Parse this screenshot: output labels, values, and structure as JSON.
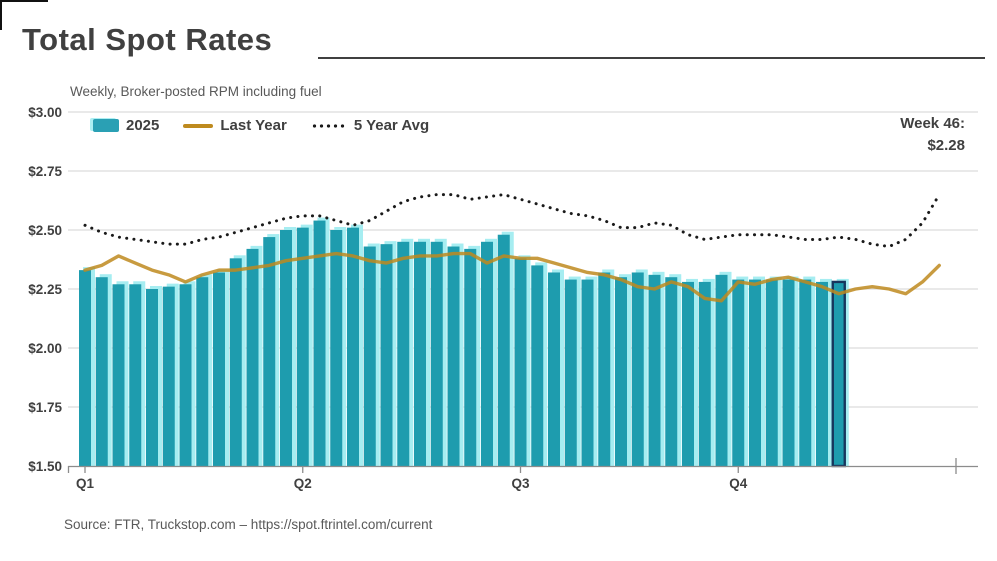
{
  "title": "Total Spot Rates",
  "subtitle": "Weekly, Broker-posted RPM including fuel",
  "annotation": {
    "line1": "Week 46:",
    "line2": "$2.28"
  },
  "legend": {
    "items": [
      {
        "label": "2025",
        "marker": "bar-swatch"
      },
      {
        "label": "Last Year",
        "marker": "line-swatch"
      },
      {
        "label": "5 Year Avg",
        "marker": "dotted-swatch"
      }
    ]
  },
  "source": "Source: FTR, Truckstop.com – https://spot.ftrintel.com/current",
  "colors": {
    "bar": "#1E9CAE",
    "bar_echo": "#A6EDF1",
    "highlight_border": "#17365D",
    "last_year": "#BE8A1E",
    "five_year_avg": "#1A1A1A",
    "grid": "#DCDCDC",
    "axis": "#8C8C8C",
    "text": "#404040",
    "subtext": "#595959"
  },
  "chart_data": {
    "type": "bar",
    "title": "Total Spot Rates",
    "subtitle": "Weekly, Broker-posted RPM including fuel",
    "x_unit": "week",
    "weeks_total": 52,
    "bar_weeks": 46,
    "ylim": [
      1.5,
      3.0
    ],
    "grid": true,
    "legend_position": "top-left",
    "yticks": [
      {
        "label": "$3.00",
        "value": 3.0
      },
      {
        "label": "$2.75",
        "value": 2.75
      },
      {
        "label": "$2.50",
        "value": 2.5
      },
      {
        "label": "$2.25",
        "value": 2.25
      },
      {
        "label": "$2.00",
        "value": 2.0
      },
      {
        "label": "$1.75",
        "value": 1.75
      },
      {
        "label": "$1.50",
        "value": 1.5
      }
    ],
    "xticks": [
      {
        "label": "Q1",
        "week": 1
      },
      {
        "label": "Q2",
        "week": 14
      },
      {
        "label": "Q3",
        "week": 27
      },
      {
        "label": "Q4",
        "week": 40
      }
    ],
    "series": [
      {
        "name": "2025",
        "type": "bar",
        "color": "#1E9CAE",
        "values": [
          2.33,
          2.3,
          2.27,
          2.27,
          2.25,
          2.26,
          2.27,
          2.3,
          2.32,
          2.38,
          2.42,
          2.47,
          2.5,
          2.51,
          2.54,
          2.5,
          2.51,
          2.43,
          2.44,
          2.45,
          2.45,
          2.45,
          2.43,
          2.42,
          2.45,
          2.48,
          2.38,
          2.35,
          2.32,
          2.29,
          2.29,
          2.32,
          2.3,
          2.32,
          2.31,
          2.3,
          2.28,
          2.28,
          2.31,
          2.29,
          2.29,
          2.29,
          2.29,
          2.29,
          2.28,
          2.28
        ]
      },
      {
        "name": "Last Year",
        "type": "line",
        "color": "#BE8A1E",
        "values": [
          2.33,
          2.35,
          2.39,
          2.36,
          2.33,
          2.31,
          2.28,
          2.31,
          2.33,
          2.33,
          2.34,
          2.35,
          2.37,
          2.38,
          2.39,
          2.4,
          2.39,
          2.37,
          2.36,
          2.38,
          2.39,
          2.39,
          2.4,
          2.4,
          2.36,
          2.39,
          2.38,
          2.38,
          2.36,
          2.34,
          2.32,
          2.31,
          2.29,
          2.26,
          2.25,
          2.28,
          2.26,
          2.21,
          2.2,
          2.28,
          2.27,
          2.29,
          2.3,
          2.28,
          2.26,
          2.23,
          2.25,
          2.26,
          2.25,
          2.23,
          2.28,
          2.35
        ]
      },
      {
        "name": "5 Year Avg",
        "type": "dotted-line",
        "color": "#1A1A1A",
        "values": [
          2.52,
          2.49,
          2.47,
          2.46,
          2.45,
          2.44,
          2.44,
          2.46,
          2.47,
          2.49,
          2.51,
          2.53,
          2.55,
          2.56,
          2.56,
          2.54,
          2.52,
          2.54,
          2.58,
          2.62,
          2.64,
          2.65,
          2.65,
          2.63,
          2.64,
          2.65,
          2.63,
          2.61,
          2.59,
          2.57,
          2.56,
          2.54,
          2.51,
          2.51,
          2.53,
          2.52,
          2.48,
          2.46,
          2.47,
          2.48,
          2.48,
          2.48,
          2.47,
          2.46,
          2.46,
          2.47,
          2.46,
          2.44,
          2.43,
          2.46,
          2.53,
          2.65
        ]
      }
    ],
    "highlight": {
      "series": "2025",
      "week": 46,
      "value": 2.28,
      "border_color": "#17365D"
    }
  }
}
